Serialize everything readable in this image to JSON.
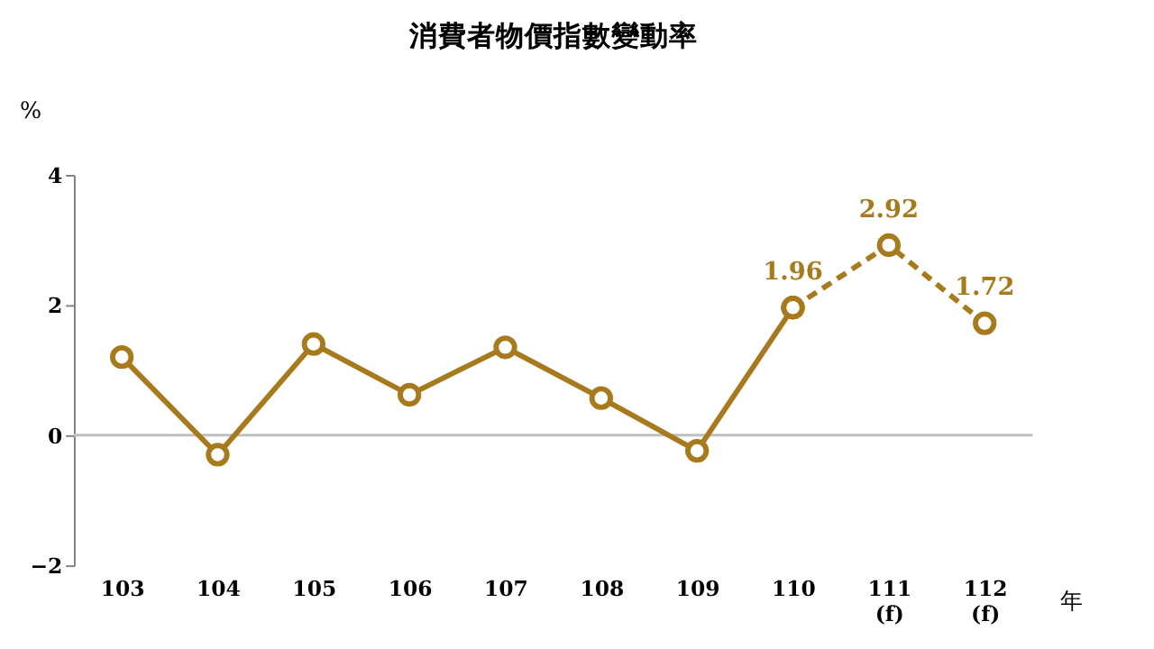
{
  "chart_data": {
    "type": "line",
    "title": "消費者物價指數變動率",
    "ylabel": "%",
    "xlabel": "年",
    "categories": [
      "103",
      "104",
      "105",
      "106",
      "107",
      "108",
      "109",
      "110",
      "111\n(f)",
      "112\n(f)"
    ],
    "series": [
      {
        "color": "#a87a1e",
        "line_style": "solid",
        "values": [
          1.2,
          -0.3,
          1.4,
          0.62,
          1.35,
          0.57,
          -0.24,
          1.96,
          null,
          null
        ]
      },
      {
        "color": "#a87a1e",
        "line_style": "dashed",
        "values": [
          null,
          null,
          null,
          null,
          null,
          null,
          null,
          1.96,
          2.92,
          1.72
        ],
        "value_labels": [
          null,
          null,
          null,
          null,
          null,
          null,
          null,
          "1.96",
          "2.92",
          "1.72"
        ]
      }
    ],
    "ylim": [
      -2,
      4
    ],
    "yticks": [
      -2,
      0,
      2,
      4
    ],
    "grid": false,
    "marker": "circle",
    "ref_lines": [
      {
        "axis": "y",
        "value": 0,
        "color": "#bfbfbf"
      }
    ]
  }
}
